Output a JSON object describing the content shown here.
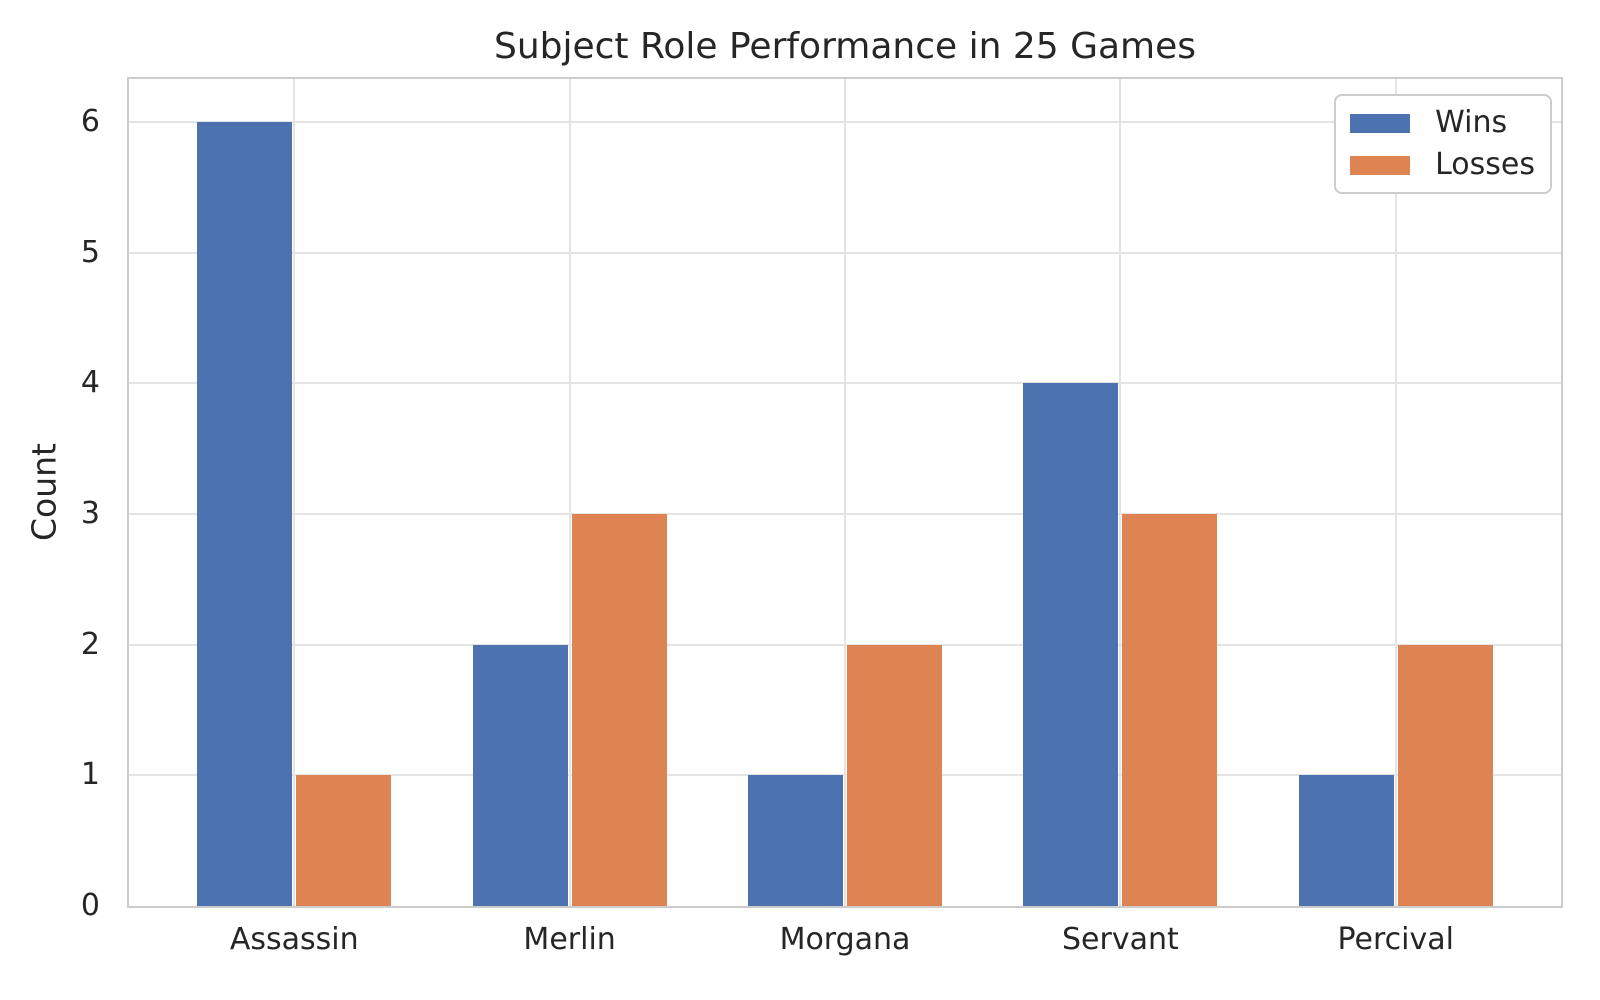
{
  "chart_data": {
    "type": "bar",
    "title": "Subject Role Performance in 25 Games",
    "xlabel": "",
    "ylabel": "Count",
    "categories": [
      "Assassin",
      "Merlin",
      "Morgana",
      "Servant",
      "Percival"
    ],
    "series": [
      {
        "name": "Wins",
        "color": "#4c72b0",
        "values": [
          6,
          2,
          1,
          4,
          1
        ]
      },
      {
        "name": "Losses",
        "color": "#dd8452",
        "values": [
          1,
          3,
          2,
          3,
          2
        ]
      }
    ],
    "yticks": [
      0,
      1,
      2,
      3,
      4,
      5,
      6
    ],
    "ylim": [
      0,
      6.33
    ],
    "grid": true,
    "legend_position": "upper right",
    "colors": {
      "background": "#ffffff",
      "grid": "#e4e4e4",
      "spine": "#cccccc",
      "text": "#262626"
    }
  }
}
